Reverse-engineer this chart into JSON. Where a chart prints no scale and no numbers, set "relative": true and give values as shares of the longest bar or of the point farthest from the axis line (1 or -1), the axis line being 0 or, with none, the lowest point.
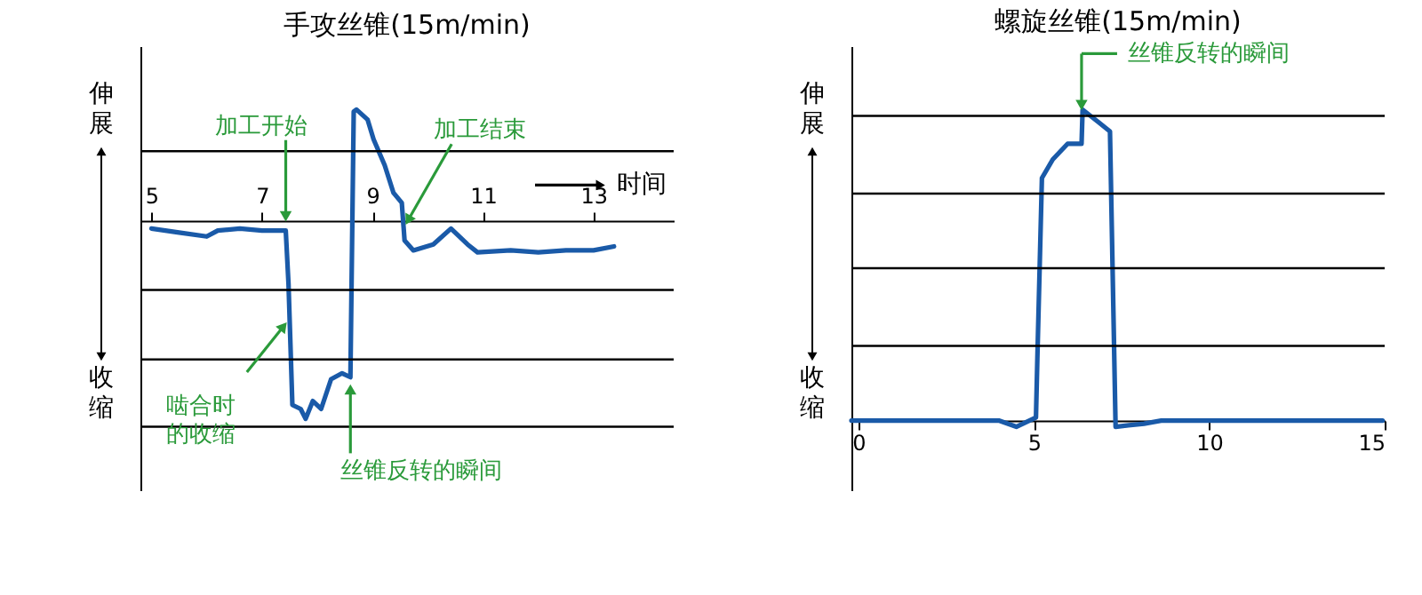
{
  "chart_data": [
    {
      "type": "line",
      "title": "手攻丝锥(15m/min)",
      "xlabel": "时间",
      "relative": true,
      "xlim": [
        4.8,
        14.45
      ],
      "xticks": [
        5,
        7,
        9,
        11,
        13
      ],
      "series": [
        {
          "color": "#1a5aa8",
          "x": [
            5.0,
            5.5,
            6.0,
            6.2,
            6.6,
            7.0,
            7.43,
            7.48,
            7.55,
            7.7,
            7.79,
            7.92,
            8.07,
            8.25,
            8.45,
            8.6,
            8.66,
            8.71,
            8.91,
            9.02,
            9.22,
            9.38,
            9.53,
            9.58,
            9.74,
            10.1,
            10.42,
            10.72,
            10.9,
            11.5,
            12.0,
            12.5,
            13.0,
            13.37
          ],
          "values": [
            -0.04,
            -0.06,
            -0.08,
            -0.05,
            -0.04,
            -0.05,
            -0.05,
            -0.32,
            -0.93,
            -0.95,
            -1.0,
            -0.91,
            -0.95,
            -0.8,
            -0.77,
            -0.79,
            0.55,
            0.56,
            0.51,
            0.41,
            0.28,
            0.14,
            0.09,
            -0.1,
            -0.15,
            -0.12,
            -0.04,
            -0.12,
            -0.16,
            -0.15,
            -0.16,
            -0.15,
            -0.15,
            -0.13
          ]
        }
      ],
      "ref_lines": [
        {
          "axis": "y",
          "value": 0.35,
          "color": "#000000"
        },
        {
          "axis": "y",
          "value": -0.35,
          "color": "#000000"
        },
        {
          "axis": "y",
          "value": -0.7,
          "color": "#000000"
        },
        {
          "axis": "y",
          "value": -1.04,
          "color": "#000000"
        }
      ],
      "annotations": [
        "伸展",
        "收缩",
        {
          "text": "加工开始",
          "x": 7.43,
          "y": 0.03
        },
        {
          "text": "加工结束",
          "x": 9.66,
          "y": 0.01
        },
        {
          "text": "啮合时的收缩",
          "x": 7.37,
          "y": -0.54
        },
        {
          "text": "丝锥反转的瞬间",
          "x": 8.6,
          "y": -0.86
        }
      ]
    },
    {
      "type": "line",
      "title": "螺旋丝锥(15m/min)",
      "relative": true,
      "xlim": [
        -0.2,
        15.0
      ],
      "xticks": [
        0,
        5,
        10,
        15
      ],
      "series": [
        {
          "color": "#1a5aa8",
          "x": [
            -0.2,
            1.0,
            2.5,
            4.0,
            4.5,
            5.06,
            5.1,
            5.23,
            5.54,
            5.96,
            6.36,
            6.39,
            6.84,
            7.17,
            7.33,
            8.14,
            8.63,
            10.0,
            12.0,
            14.94
          ],
          "values": [
            0.0,
            0.0,
            0.0,
            0.0,
            -0.02,
            0.01,
            0.2,
            0.78,
            0.84,
            0.89,
            0.89,
            1.0,
            0.96,
            0.93,
            -0.02,
            -0.01,
            0.0,
            0.0,
            0.0,
            0.0
          ]
        }
      ],
      "ref_lines": [
        {
          "axis": "y",
          "value": 0.24,
          "color": "#000000"
        },
        {
          "axis": "y",
          "value": 0.49,
          "color": "#000000"
        },
        {
          "axis": "y",
          "value": 0.73,
          "color": "#000000"
        },
        {
          "axis": "y",
          "value": 0.98,
          "color": "#000000"
        }
      ],
      "annotations": [
        "伸展",
        "收缩",
        {
          "text": "丝锥反转的瞬间",
          "x": 6.36,
          "y": 1.02
        }
      ]
    }
  ]
}
